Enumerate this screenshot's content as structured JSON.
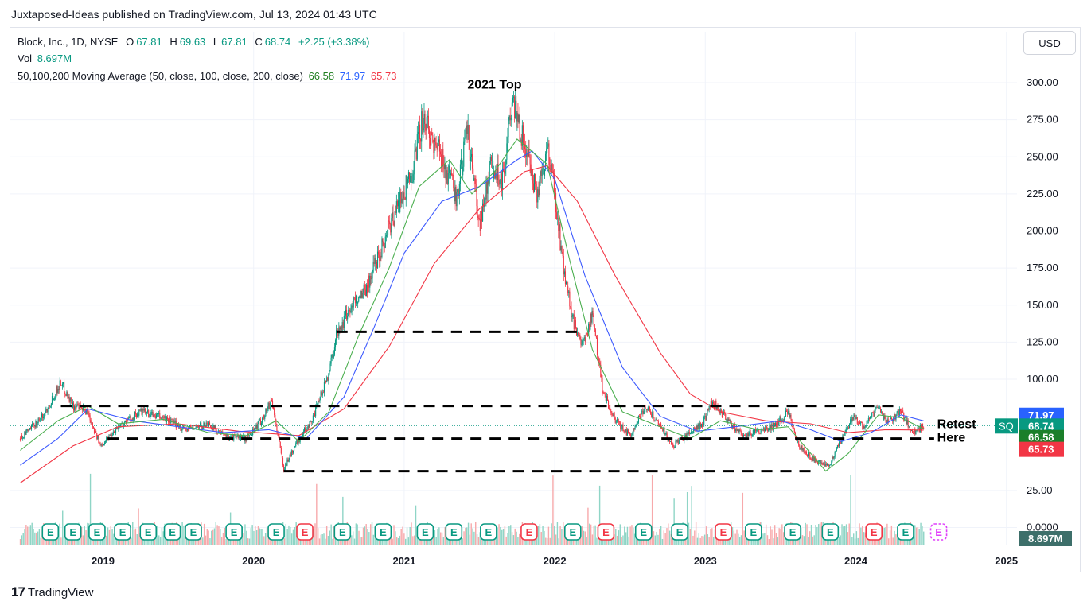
{
  "publish_line": "Juxtaposed-Ideas published on TradingView.com, Jul 13, 2024 01:43 UTC",
  "legend": {
    "symbol": "Block, Inc., 1D, NYSE",
    "o_label": "O",
    "o": "67.81",
    "h_label": "H",
    "h": "69.63",
    "l_label": "L",
    "l": "67.81",
    "c_label": "C",
    "c": "68.74",
    "change": "+2.25 (+3.38%)",
    "vol_label": "Vol",
    "vol": "8.697M",
    "ma_label": "50,100,200 Moving Average (50, close, 100, close, 200, close)",
    "ma50": "66.58",
    "ma100": "71.97",
    "ma200": "65.73"
  },
  "currency_button": "USD",
  "footer_brand": "TradingView",
  "colors": {
    "up": "#089981",
    "down": "#f23645",
    "ma50": "#4caf50",
    "ma100": "#3d5afe",
    "ma200": "#f23645",
    "grid": "#f0f3fa",
    "text": "#131722"
  },
  "chart_data": {
    "type": "candlestick",
    "ticker_tag": "SQ",
    "y_ticks": [
      "300.00",
      "275.00",
      "250.00",
      "225.00",
      "200.00",
      "175.00",
      "150.00",
      "125.00",
      "100.00",
      "25.00",
      "0.0000"
    ],
    "y_tick_values": [
      300,
      275,
      250,
      225,
      200,
      175,
      150,
      125,
      100,
      25,
      0
    ],
    "x_ticks": [
      "2019",
      "2020",
      "2021",
      "2022",
      "2023",
      "2024",
      "2025"
    ],
    "price_range": [
      0,
      300
    ],
    "price_path": [
      [
        2018.45,
        60
      ],
      [
        2018.6,
        75
      ],
      [
        2018.72,
        98
      ],
      [
        2018.8,
        82
      ],
      [
        2018.9,
        78
      ],
      [
        2018.98,
        55
      ],
      [
        2019.1,
        68
      ],
      [
        2019.25,
        78
      ],
      [
        2019.4,
        74
      ],
      [
        2019.55,
        66
      ],
      [
        2019.7,
        70
      ],
      [
        2019.8,
        62
      ],
      [
        2019.95,
        60
      ],
      [
        2020.05,
        72
      ],
      [
        2020.12,
        86
      ],
      [
        2020.2,
        40
      ],
      [
        2020.28,
        56
      ],
      [
        2020.4,
        75
      ],
      [
        2020.5,
        105
      ],
      [
        2020.55,
        130
      ],
      [
        2020.65,
        150
      ],
      [
        2020.75,
        162
      ],
      [
        2020.85,
        190
      ],
      [
        2020.95,
        215
      ],
      [
        2021.05,
        240
      ],
      [
        2021.12,
        275
      ],
      [
        2021.25,
        250
      ],
      [
        2021.35,
        222
      ],
      [
        2021.42,
        268
      ],
      [
        2021.5,
        205
      ],
      [
        2021.58,
        245
      ],
      [
        2021.65,
        235
      ],
      [
        2021.72,
        285
      ],
      [
        2021.8,
        258
      ],
      [
        2021.88,
        225
      ],
      [
        2021.95,
        255
      ],
      [
        2022.0,
        225
      ],
      [
        2022.05,
        180
      ],
      [
        2022.12,
        140
      ],
      [
        2022.18,
        120
      ],
      [
        2022.25,
        145
      ],
      [
        2022.32,
        92
      ],
      [
        2022.4,
        72
      ],
      [
        2022.5,
        62
      ],
      [
        2022.6,
        82
      ],
      [
        2022.68,
        72
      ],
      [
        2022.78,
        55
      ],
      [
        2022.88,
        62
      ],
      [
        2022.98,
        70
      ],
      [
        2023.05,
        85
      ],
      [
        2023.15,
        72
      ],
      [
        2023.25,
        62
      ],
      [
        2023.35,
        65
      ],
      [
        2023.45,
        68
      ],
      [
        2023.55,
        78
      ],
      [
        2023.62,
        55
      ],
      [
        2023.72,
        46
      ],
      [
        2023.82,
        42
      ],
      [
        2023.9,
        58
      ],
      [
        2023.98,
        75
      ],
      [
        2024.05,
        68
      ],
      [
        2024.15,
        82
      ],
      [
        2024.2,
        70
      ],
      [
        2024.3,
        78
      ],
      [
        2024.38,
        64
      ],
      [
        2024.45,
        68.74
      ]
    ],
    "ma50_path": [
      [
        2018.45,
        52
      ],
      [
        2018.7,
        72
      ],
      [
        2018.9,
        82
      ],
      [
        2019.1,
        70
      ],
      [
        2019.4,
        73
      ],
      [
        2019.7,
        64
      ],
      [
        2019.95,
        62
      ],
      [
        2020.15,
        72
      ],
      [
        2020.3,
        58
      ],
      [
        2020.5,
        78
      ],
      [
        2020.7,
        130
      ],
      [
        2020.9,
        175
      ],
      [
        2021.1,
        230
      ],
      [
        2021.3,
        248
      ],
      [
        2021.45,
        225
      ],
      [
        2021.6,
        240
      ],
      [
        2021.75,
        262
      ],
      [
        2021.95,
        245
      ],
      [
        2022.1,
        180
      ],
      [
        2022.25,
        120
      ],
      [
        2022.45,
        78
      ],
      [
        2022.65,
        70
      ],
      [
        2022.9,
        60
      ],
      [
        2023.1,
        72
      ],
      [
        2023.35,
        66
      ],
      [
        2023.55,
        68
      ],
      [
        2023.8,
        38
      ],
      [
        2023.95,
        50
      ],
      [
        2024.15,
        76
      ],
      [
        2024.3,
        74
      ],
      [
        2024.45,
        66.58
      ]
    ],
    "ma100_path": [
      [
        2018.45,
        42
      ],
      [
        2018.7,
        60
      ],
      [
        2018.9,
        80
      ],
      [
        2019.2,
        72
      ],
      [
        2019.5,
        68
      ],
      [
        2019.8,
        64
      ],
      [
        2020.1,
        66
      ],
      [
        2020.35,
        60
      ],
      [
        2020.6,
        88
      ],
      [
        2020.8,
        135
      ],
      [
        2021.0,
        185
      ],
      [
        2021.25,
        220
      ],
      [
        2021.5,
        230
      ],
      [
        2021.75,
        248
      ],
      [
        2021.85,
        254
      ],
      [
        2022.0,
        235
      ],
      [
        2022.2,
        170
      ],
      [
        2022.45,
        108
      ],
      [
        2022.7,
        75
      ],
      [
        2022.95,
        65
      ],
      [
        2023.2,
        68
      ],
      [
        2023.5,
        72
      ],
      [
        2023.7,
        66
      ],
      [
        2023.9,
        58
      ],
      [
        2024.1,
        64
      ],
      [
        2024.3,
        76
      ],
      [
        2024.45,
        71.97
      ]
    ],
    "ma200_path": [
      [
        2018.45,
        30
      ],
      [
        2018.8,
        55
      ],
      [
        2019.1,
        68
      ],
      [
        2019.5,
        70
      ],
      [
        2019.9,
        65
      ],
      [
        2020.3,
        62
      ],
      [
        2020.6,
        80
      ],
      [
        2020.9,
        122
      ],
      [
        2021.2,
        178
      ],
      [
        2021.5,
        215
      ],
      [
        2021.8,
        240
      ],
      [
        2021.95,
        244
      ],
      [
        2022.15,
        220
      ],
      [
        2022.4,
        170
      ],
      [
        2022.7,
        118
      ],
      [
        2022.9,
        90
      ],
      [
        2023.1,
        78
      ],
      [
        2023.4,
        72
      ],
      [
        2023.7,
        70
      ],
      [
        2023.95,
        64
      ],
      [
        2024.2,
        66
      ],
      [
        2024.45,
        65.73
      ]
    ],
    "levels": [
      {
        "price": 132,
        "from": 2020.55,
        "to": 2022.15
      },
      {
        "price": 82,
        "from": 2018.72,
        "to": 2024.28
      },
      {
        "price": 60,
        "from": 2019.03,
        "to": 2024.52
      },
      {
        "price": 38,
        "from": 2020.2,
        "to": 2023.75
      }
    ],
    "annotations": [
      {
        "text": "2021 Top",
        "x": 2021.6,
        "y": 296
      },
      {
        "text": "Retest",
        "x": 2024.54,
        "y": 67
      },
      {
        "text": "Here",
        "x": 2024.54,
        "y": 58
      }
    ],
    "earnings": [
      {
        "x": 2018.65,
        "type": "E",
        "positive": true
      },
      {
        "x": 2018.8,
        "type": "E",
        "positive": true
      },
      {
        "x": 2018.96,
        "type": "E",
        "positive": true
      },
      {
        "x": 2019.13,
        "type": "E",
        "positive": true
      },
      {
        "x": 2019.3,
        "type": "E",
        "positive": true
      },
      {
        "x": 2019.46,
        "type": "E",
        "positive": true
      },
      {
        "x": 2019.6,
        "type": "E",
        "positive": true
      },
      {
        "x": 2019.87,
        "type": "E",
        "positive": true
      },
      {
        "x": 2020.15,
        "type": "E",
        "positive": true
      },
      {
        "x": 2020.34,
        "type": "E",
        "positive": false
      },
      {
        "x": 2020.59,
        "type": "E",
        "positive": true
      },
      {
        "x": 2020.86,
        "type": "E",
        "positive": true
      },
      {
        "x": 2021.14,
        "type": "E",
        "positive": true
      },
      {
        "x": 2021.33,
        "type": "E",
        "positive": true
      },
      {
        "x": 2021.56,
        "type": "E",
        "positive": true
      },
      {
        "x": 2021.83,
        "type": "E",
        "positive": false
      },
      {
        "x": 2022.12,
        "type": "E",
        "positive": true
      },
      {
        "x": 2022.34,
        "type": "E",
        "positive": false
      },
      {
        "x": 2022.59,
        "type": "E",
        "positive": true
      },
      {
        "x": 2022.83,
        "type": "E",
        "positive": true
      },
      {
        "x": 2023.12,
        "type": "E",
        "positive": false
      },
      {
        "x": 2023.32,
        "type": "E",
        "positive": true
      },
      {
        "x": 2023.58,
        "type": "E",
        "positive": true
      },
      {
        "x": 2023.83,
        "type": "E",
        "positive": true
      },
      {
        "x": 2024.12,
        "type": "E",
        "positive": false
      },
      {
        "x": 2024.33,
        "type": "E",
        "positive": true
      },
      {
        "x": 2024.55,
        "type": "E",
        "positive": null
      }
    ],
    "price_tags": [
      {
        "label": "71.97",
        "price": 76,
        "color": "#2962ff"
      },
      {
        "label": "68.74",
        "price": 68.74,
        "color": "#089981"
      },
      {
        "label": "66.58",
        "price": 61,
        "color": "#1b7f2a"
      },
      {
        "label": "65.73",
        "price": 53,
        "color": "#f23645"
      }
    ],
    "volume_tag": "8.697M"
  }
}
